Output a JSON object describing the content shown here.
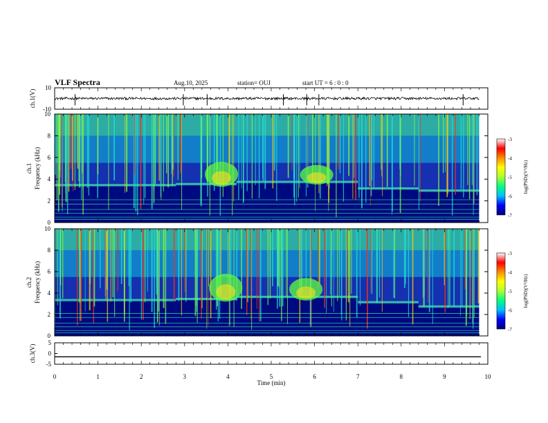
{
  "header": {
    "title": "VLF Spectra",
    "date": "Aug.10, 2025",
    "station": "station= OUJ",
    "start": "start  UT =   6  : 0  : 0"
  },
  "colors": {
    "axis": "#000000",
    "spectrogram_background": "#0a1a8c",
    "colormap": [
      "#000080",
      "#0000ff",
      "#00bfff",
      "#00ff7f",
      "#adff2f",
      "#ffff00",
      "#ff8c00",
      "#ff0000",
      "#ffffff"
    ]
  },
  "chart_data": [
    {
      "type": "line",
      "name": "ch1-waveform",
      "ylabel": "ch.1(V)",
      "xlim": [
        0,
        10
      ],
      "ylim": [
        -10,
        10
      ],
      "yticks": [
        "10",
        "-10"
      ],
      "baseline": 0,
      "noise_amplitude": 1.2,
      "spike_times_min": [
        0.47,
        2.97,
        3.52,
        5.28,
        5.82,
        6.1,
        9.43
      ],
      "spike_amplitude": 4
    },
    {
      "type": "heatmap",
      "name": "ch1-spectrogram",
      "ylabel": "ch.1\nFrequency (kHz)",
      "xlim": [
        0,
        10
      ],
      "ylim": [
        0,
        10
      ],
      "yticks": [
        "0",
        "2",
        "4",
        "6",
        "8",
        "10"
      ],
      "z_label": "log(PSD)(V²/Hz)",
      "zlim": [
        -7,
        -3
      ],
      "zticks": [
        "-3",
        "-4",
        "-5",
        "-6",
        "-7"
      ],
      "emission_bursts": [
        {
          "t": 3.85,
          "f_low": 3.3,
          "f_high": 5.6
        },
        {
          "t": 6.05,
          "f_low": 3.5,
          "f_high": 5.3
        }
      ],
      "band_edge_khz": [
        3.3,
        3.3,
        3.4,
        3.6,
        3.6,
        3.0,
        2.8
      ]
    },
    {
      "type": "heatmap",
      "name": "ch2-spectrogram",
      "ylabel": "ch.2\nFrequency (kHz)",
      "xlim": [
        0,
        10
      ],
      "ylim": [
        0,
        10
      ],
      "yticks": [
        "0",
        "2",
        "4",
        "6",
        "8",
        "10"
      ],
      "z_label": "log(PSD)(V²/Hz)",
      "zlim": [
        -7,
        -3
      ],
      "zticks": [
        "-3",
        "-4",
        "-5",
        "-6",
        "-7"
      ],
      "emission_bursts": [
        {
          "t": 3.95,
          "f_low": 3.2,
          "f_high": 5.8
        },
        {
          "t": 5.8,
          "f_low": 3.3,
          "f_high": 5.4
        }
      ],
      "band_edge_khz": [
        3.2,
        3.2,
        3.3,
        3.5,
        3.5,
        3.0,
        2.6
      ]
    },
    {
      "type": "line",
      "name": "ch3-waveform",
      "ylabel": "ch.3(V)",
      "xlim": [
        0,
        10
      ],
      "ylim": [
        -5,
        5
      ],
      "yticks": [
        "5",
        "0",
        "-5"
      ],
      "values": [
        -1.5,
        -1.5
      ]
    }
  ],
  "xaxis": {
    "label": "Time (min)",
    "ticks": [
      "0",
      "1",
      "2",
      "3",
      "4",
      "5",
      "6",
      "7",
      "8",
      "9",
      "10"
    ]
  }
}
